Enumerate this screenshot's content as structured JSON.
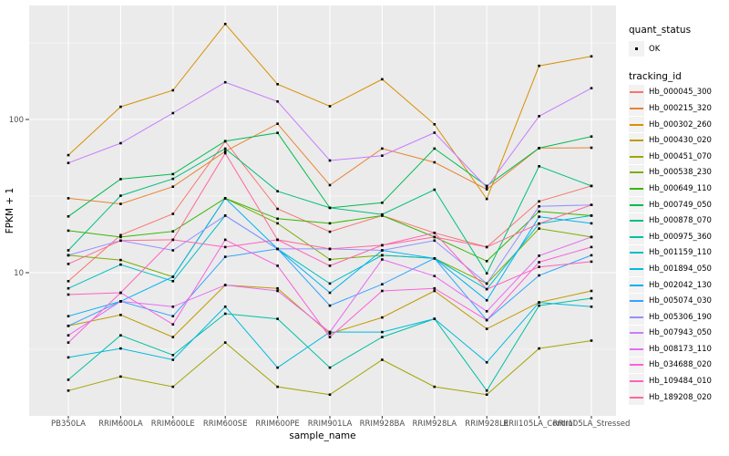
{
  "legend": {
    "quant_status": {
      "title": "quant_status",
      "entries": [
        {
          "label": "OK",
          "shape": "point",
          "color": "#000000"
        }
      ]
    },
    "tracking_id": {
      "title": "tracking_id"
    }
  },
  "colors": {
    "panel_fill": "#EBEBEB",
    "grid": "#FFFFFF",
    "tick_text": "#4D4D4D",
    "point": "#000000",
    "legend_key_fill": "#F2F2F2"
  },
  "chart_data": {
    "type": "line",
    "title": "",
    "xlabel": "sample_name",
    "ylabel": "FPKM + 1",
    "y_scale": "log10",
    "ylim": [
      1.15,
      455
    ],
    "y_major_ticks": [
      10,
      100
    ],
    "y_tick_labels": [
      "10",
      "100"
    ],
    "y_minor_ticks": [
      3.162,
      31.62,
      316.2
    ],
    "grid": true,
    "legend_position": "right",
    "point_shape": "small black square (quant_status OK)",
    "x_categories": [
      "PB350LA",
      "RRIM600LA",
      "RRIM600LE",
      "RRIM600SE",
      "RRIM600PE",
      "RRIM901LA",
      "RRIM928BA",
      "RRIM928LA",
      "RRIM928LE",
      "RRII105LA_Control",
      "RRII105LA_Stressed"
    ],
    "series": [
      {
        "name": "Hb_000045_300",
        "color": "#F8766D",
        "values": [
          8.8,
          17.6,
          24.2,
          72,
          26.1,
          18.5,
          23.6,
          18.2,
          14.7,
          29.2,
          36.8
        ]
      },
      {
        "name": "Hb_000215_320",
        "color": "#EA8331",
        "values": [
          30.6,
          28.1,
          36.4,
          62,
          93.8,
          37.3,
          64.6,
          52.5,
          35,
          65,
          65.4
        ]
      },
      {
        "name": "Hb_000302_260",
        "color": "#D89000",
        "values": [
          58.5,
          121,
          155,
          420,
          170,
          122,
          183,
          93,
          30.3,
          224,
          258
        ]
      },
      {
        "name": "Hb_000430_020",
        "color": "#C09B00",
        "values": [
          4.5,
          5.3,
          3.8,
          8.3,
          7.9,
          4.0,
          5.1,
          7.6,
          4.3,
          6.4,
          7.6
        ]
      },
      {
        "name": "Hb_000451_070",
        "color": "#A3A500",
        "values": [
          1.7,
          2.1,
          1.8,
          3.5,
          1.8,
          1.6,
          2.7,
          1.8,
          1.6,
          3.2,
          3.6
        ]
      },
      {
        "name": "Hb_000538_230",
        "color": "#7CAE00",
        "values": [
          13.0,
          12.1,
          9.4,
          30.6,
          21.0,
          12.2,
          13.0,
          12.4,
          8.5,
          19.4,
          17.1
        ]
      },
      {
        "name": "Hb_000649_110",
        "color": "#39B600",
        "values": [
          18.8,
          17.1,
          18.6,
          30.6,
          22.5,
          21.0,
          23.6,
          17.1,
          11.9,
          25.1,
          23.6
        ]
      },
      {
        "name": "Hb_000749_050",
        "color": "#00BB4E",
        "values": [
          23.3,
          40.8,
          44,
          72.3,
          81.8,
          26.5,
          28.6,
          64.6,
          36.8,
          65,
          77.4
        ]
      },
      {
        "name": "Hb_000878_070",
        "color": "#00BF7D",
        "values": [
          14,
          31.8,
          41,
          64.5,
          34,
          26.5,
          24,
          34.8,
          9.9,
          49.5,
          36.8
        ]
      },
      {
        "name": "Hb_000975_360",
        "color": "#00C1A3",
        "values": [
          2.0,
          3.9,
          2.9,
          5.4,
          5.0,
          2.4,
          3.8,
          5.0,
          1.7,
          6.1,
          6.8
        ]
      },
      {
        "name": "Hb_001159_110",
        "color": "#00BFC4",
        "values": [
          7.9,
          11.3,
          8.8,
          23.6,
          14.3,
          8.5,
          13.0,
          12.4,
          7.8,
          20.9,
          23.6
        ]
      },
      {
        "name": "Hb_001894_050",
        "color": "#00BAE0",
        "values": [
          2.8,
          3.2,
          2.7,
          6.0,
          2.4,
          4.1,
          4.1,
          5.0,
          2.6,
          6.4,
          6.0
        ]
      },
      {
        "name": "Hb_002042_130",
        "color": "#00B0F6",
        "values": [
          5.2,
          6.5,
          9.4,
          30.6,
          14.3,
          7.4,
          14,
          12.4,
          6.6,
          23.2,
          21.0
        ]
      },
      {
        "name": "Hb_005074_030",
        "color": "#35A2FF",
        "values": [
          4.5,
          6.5,
          5.2,
          12.7,
          14.3,
          6.1,
          8.4,
          12.4,
          4.9,
          9.6,
          13.0
        ]
      },
      {
        "name": "Hb_005306_190",
        "color": "#9590FF",
        "values": [
          13.0,
          16.2,
          14.0,
          23.6,
          14.3,
          14.3,
          14.0,
          16.2,
          8.5,
          27.1,
          27.7
        ]
      },
      {
        "name": "Hb_007943_050",
        "color": "#C77CFF",
        "values": [
          52,
          70,
          110,
          175,
          131,
          54,
          58,
          82,
          36,
          105,
          160
        ]
      },
      {
        "name": "Hb_008173_110",
        "color": "#E76BF3",
        "values": [
          3.9,
          6.5,
          6.0,
          8.3,
          7.6,
          4.1,
          12.2,
          9.5,
          5.6,
          12.9,
          17.1
        ]
      },
      {
        "name": "Hb_034688_020",
        "color": "#FA62DB",
        "values": [
          3.5,
          7.4,
          4.6,
          16.4,
          11.1,
          3.8,
          7.6,
          7.9,
          4.9,
          11.7,
          14.7
        ]
      },
      {
        "name": "Hb_109484_010",
        "color": "#FF62BC",
        "values": [
          7.2,
          7.4,
          16.4,
          14.7,
          16.4,
          11.1,
          15.1,
          18.2,
          7.8,
          10.9,
          11.8
        ]
      },
      {
        "name": "Hb_189208_020",
        "color": "#FF6A98",
        "values": [
          11.4,
          16.2,
          16.4,
          60.2,
          16.4,
          14.3,
          15.1,
          17.1,
          14.7,
          20.9,
          27.7
        ]
      }
    ]
  }
}
